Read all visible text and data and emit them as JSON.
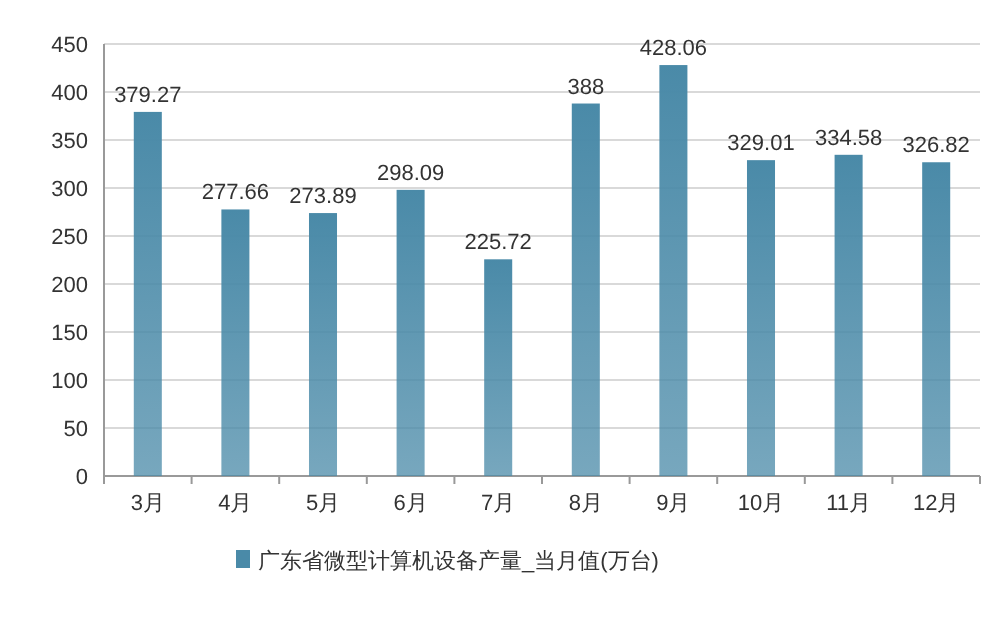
{
  "chart_data": {
    "type": "bar",
    "categories": [
      "3月",
      "4月",
      "5月",
      "6月",
      "7月",
      "8月",
      "9月",
      "10月",
      "11月",
      "12月"
    ],
    "series": [
      {
        "name": "广东省微型计算机设备产量_当月值(万台)",
        "color": "#4a8aa8",
        "values": [
          379.27,
          277.66,
          273.89,
          298.09,
          225.72,
          388,
          428.06,
          329.01,
          334.58,
          326.82
        ]
      }
    ],
    "ylim": [
      0,
      450
    ],
    "yticks": [
      0,
      50,
      100,
      150,
      200,
      250,
      300,
      350,
      400,
      450
    ],
    "grid": "y",
    "legend": "bottom",
    "data_labels": true
  }
}
